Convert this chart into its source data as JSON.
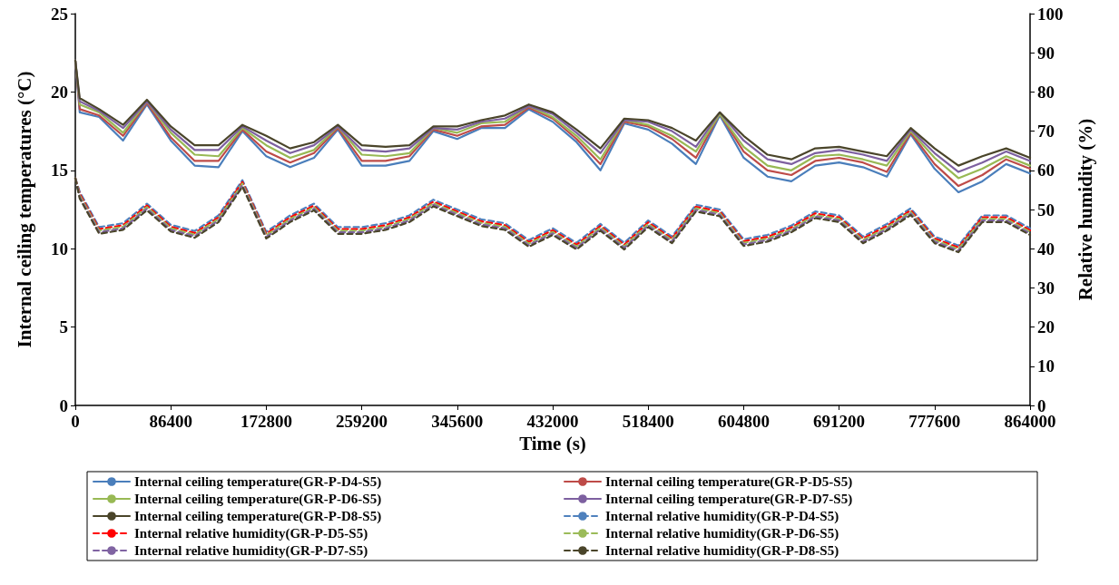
{
  "chart_data": {
    "type": "line",
    "xlabel": "Time (s)",
    "ylabel": "Internal ceiling temperatures (°C)",
    "y2label": "Relative humidity (%)",
    "x": [
      0,
      4000,
      21600,
      43200,
      64800,
      86400,
      108000,
      129600,
      151200,
      172800,
      194400,
      216000,
      237600,
      259200,
      280800,
      302400,
      324000,
      345600,
      367200,
      388800,
      410400,
      432000,
      453600,
      475200,
      496800,
      518400,
      540000,
      561600,
      583200,
      604800,
      626400,
      648000,
      669600,
      691200,
      712800,
      734400,
      756000,
      777600,
      799200,
      820800,
      842400,
      864000
    ],
    "xlim": [
      0,
      864000
    ],
    "xticks": [
      0,
      86400,
      172800,
      259200,
      345600,
      432000,
      518400,
      604800,
      691200,
      777600,
      864000
    ],
    "ylim": [
      0,
      25
    ],
    "yticks": [
      0,
      5,
      10,
      15,
      20,
      25
    ],
    "y2lim": [
      0,
      100
    ],
    "y2ticks": [
      0,
      10,
      20,
      30,
      40,
      50,
      60,
      70,
      80,
      90,
      100
    ],
    "grid": false,
    "legend": "bottom",
    "marker": "none",
    "series": [
      {
        "name": "Internal ceiling temperature(GR-P-D4-S5)",
        "color": "#4a7ebb",
        "line_style": "solid",
        "values": [
          22.0,
          18.7,
          18.4,
          16.9,
          19.2,
          16.9,
          15.3,
          15.2,
          17.5,
          15.9,
          15.2,
          15.8,
          17.6,
          15.3,
          15.3,
          15.6,
          17.5,
          17.0,
          17.7,
          17.7,
          18.9,
          18.1,
          16.8,
          15.0,
          18.0,
          17.6,
          16.7,
          15.4,
          18.5,
          15.8,
          14.6,
          14.3,
          15.3,
          15.5,
          15.2,
          14.6,
          17.3,
          15.1,
          13.6,
          14.3,
          15.4,
          14.8
        ]
      },
      {
        "name": "Internal ceiling temperature(GR-P-D5-S5)",
        "color": "#be4b48",
        "line_style": "solid",
        "values": [
          22.0,
          18.9,
          18.5,
          17.2,
          19.3,
          17.1,
          15.6,
          15.6,
          17.6,
          16.2,
          15.5,
          16.1,
          17.7,
          15.6,
          15.6,
          15.9,
          17.6,
          17.2,
          17.8,
          17.9,
          19.0,
          18.3,
          17.0,
          15.4,
          18.1,
          17.8,
          17.0,
          15.8,
          18.6,
          16.2,
          15.0,
          14.7,
          15.6,
          15.8,
          15.5,
          14.9,
          17.4,
          15.4,
          14.0,
          14.7,
          15.7,
          15.1
        ]
      },
      {
        "name": "Internal ceiling temperature(GR-P-D6-S5)",
        "color": "#98b954",
        "line_style": "solid",
        "values": [
          22.0,
          19.2,
          18.7,
          17.4,
          19.4,
          17.4,
          16.0,
          15.9,
          17.7,
          16.6,
          15.8,
          16.3,
          17.8,
          16.0,
          15.9,
          16.1,
          17.7,
          17.4,
          18.0,
          18.1,
          19.1,
          18.4,
          17.2,
          15.7,
          18.2,
          17.9,
          17.2,
          16.2,
          18.6,
          16.5,
          15.3,
          15.0,
          15.9,
          16.0,
          15.7,
          15.3,
          17.5,
          15.8,
          14.5,
          15.1,
          15.9,
          15.3
        ]
      },
      {
        "name": "Internal ceiling temperature(GR-P-D7-S5)",
        "color": "#7d60a0",
        "line_style": "solid",
        "values": [
          22.0,
          19.4,
          18.8,
          17.7,
          19.4,
          17.6,
          16.3,
          16.3,
          17.8,
          16.9,
          16.1,
          16.6,
          17.8,
          16.3,
          16.2,
          16.4,
          17.7,
          17.6,
          18.1,
          18.3,
          19.1,
          18.6,
          17.4,
          16.1,
          18.2,
          18.1,
          17.5,
          16.5,
          18.7,
          16.9,
          15.7,
          15.4,
          16.1,
          16.3,
          16.0,
          15.6,
          17.6,
          16.1,
          14.9,
          15.5,
          16.2,
          15.6
        ]
      },
      {
        "name": "Internal ceiling temperature(GR-P-D8-S5)",
        "color": "#4a452a",
        "line_style": "solid",
        "values": [
          22.0,
          19.6,
          18.9,
          17.9,
          19.5,
          17.8,
          16.6,
          16.6,
          17.9,
          17.2,
          16.4,
          16.8,
          17.9,
          16.6,
          16.5,
          16.6,
          17.8,
          17.8,
          18.2,
          18.5,
          19.2,
          18.7,
          17.6,
          16.4,
          18.3,
          18.2,
          17.7,
          16.9,
          18.7,
          17.2,
          16.0,
          15.7,
          16.4,
          16.5,
          16.2,
          15.9,
          17.7,
          16.4,
          15.3,
          15.9,
          16.4,
          15.8
        ]
      },
      {
        "name": "Internal relative humidity(GR-P-D4-S5)",
        "color": "#4f81bd",
        "line_style": "dashed",
        "axis": "y2",
        "values": [
          58,
          54.5,
          45.5,
          46.5,
          51.5,
          46.1,
          44.5,
          48.5,
          57.5,
          44.3,
          48.5,
          51.5,
          45.5,
          45.5,
          46.5,
          48.5,
          52.5,
          50,
          47.5,
          46.5,
          42.2,
          45.2,
          41.5,
          46.3,
          41.5,
          47.2,
          43.1,
          51.2,
          50,
          42.4,
          43.5,
          45.9,
          49.5,
          48.5,
          43.1,
          46.3,
          50.3,
          43.1,
          40.8,
          48.5,
          48.5,
          45.2
        ]
      },
      {
        "name": "Internal relative humidity(GR-P-D5-S5)",
        "color": "#ff0000",
        "line_style": "dashed",
        "axis": "y2",
        "values": [
          58,
          54,
          45,
          46,
          51,
          45.6,
          44,
          48,
          57,
          43.8,
          48,
          51,
          45,
          45,
          46,
          48,
          52,
          49.5,
          47,
          46,
          41.7,
          44.7,
          41,
          45.8,
          41,
          46.7,
          42.6,
          50.7,
          49.5,
          41.9,
          43,
          45.4,
          49,
          48,
          42.6,
          45.8,
          49.8,
          42.6,
          40.3,
          48,
          48,
          44.7
        ]
      },
      {
        "name": "Internal relative humidity(GR-P-D6-S5)",
        "color": "#9bbb59",
        "line_style": "dashed",
        "axis": "y2",
        "values": [
          58,
          53.6,
          44.6,
          45.6,
          50.6,
          45.2,
          43.6,
          47.6,
          56.6,
          43.4,
          47.6,
          50.6,
          44.6,
          44.6,
          45.6,
          47.6,
          51.6,
          49.1,
          46.6,
          45.6,
          41.3,
          44.3,
          40.6,
          45.4,
          40.6,
          46.3,
          42.2,
          50.3,
          49.1,
          41.5,
          42.6,
          45,
          48.6,
          47.6,
          42.2,
          45.4,
          49.4,
          42.2,
          39.9,
          47.6,
          47.6,
          44.3
        ]
      },
      {
        "name": "Internal relative humidity(GR-P-D7-S5)",
        "color": "#8064a2",
        "line_style": "dashed",
        "axis": "y2",
        "values": [
          58,
          53.2,
          44.2,
          45.2,
          50.2,
          44.8,
          43.2,
          47.2,
          56.2,
          43,
          47.2,
          50.2,
          44.2,
          44.2,
          45.2,
          47.2,
          51.2,
          48.7,
          46.2,
          45.2,
          40.9,
          43.9,
          40.2,
          45,
          40.2,
          45.9,
          41.8,
          49.9,
          48.7,
          41.1,
          42.2,
          44.6,
          48.2,
          47.2,
          41.8,
          45,
          49,
          41.8,
          39.5,
          47.2,
          47.2,
          43.9
        ]
      },
      {
        "name": "Internal relative humidity(GR-P-D8-S5)",
        "color": "#4a452a",
        "line_style": "dashed",
        "axis": "y2",
        "values": [
          58,
          52.8,
          43.8,
          44.8,
          49.8,
          44.4,
          42.8,
          46.8,
          55.8,
          42.6,
          46.8,
          49.8,
          43.8,
          43.8,
          44.8,
          46.8,
          50.8,
          48.3,
          45.8,
          44.8,
          40.5,
          43.5,
          39.8,
          44.6,
          39.8,
          45.5,
          41.4,
          49.5,
          48.3,
          40.7,
          41.8,
          44.2,
          47.8,
          46.8,
          41.4,
          44.6,
          48.6,
          41.4,
          39.1,
          46.8,
          46.8,
          43.5
        ]
      }
    ]
  }
}
